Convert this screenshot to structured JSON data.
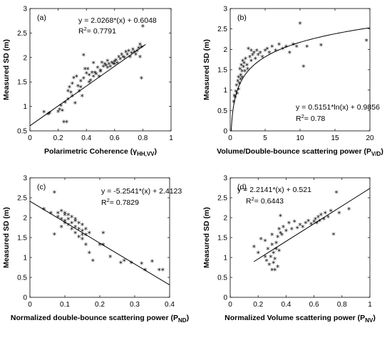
{
  "chart_data": [
    {
      "type": "scatter",
      "panel_label": "(a)",
      "equation": "y = 2.0268*(x) + 0.6048",
      "r2_prefix": "R",
      "r2_sup": "2",
      "r2_value": "= 0.7791",
      "xlabel": "Polarimetric Coherence (γ",
      "xlabel_sub": "HH,VV",
      "xlabel_end": ")",
      "ylabel": "Measured SD (m)",
      "xlim": [
        0,
        1
      ],
      "ylim": [
        0.5,
        3
      ],
      "xticks": [
        0,
        0.2,
        0.4,
        0.6,
        0.8,
        1
      ],
      "xtick_labels": [
        "0",
        "0.2",
        "0.4",
        "0.6",
        "0.8",
        "1"
      ],
      "yticks": [
        0.5,
        1,
        1.5,
        2,
        2.5,
        3
      ],
      "ytick_labels": [
        "0.5",
        "1",
        "1.5",
        "2",
        "2.5",
        "3"
      ],
      "fit": {
        "kind": "linear",
        "a": 2.0268,
        "b": 0.6048,
        "x_from": 0,
        "x_to": 0.82
      },
      "marker": "*",
      "points": [
        [
          0.1,
          0.87
        ],
        [
          0.13,
          0.83
        ],
        [
          0.14,
          0.85
        ],
        [
          0.2,
          0.88
        ],
        [
          0.22,
          1.0
        ],
        [
          0.23,
          0.9
        ],
        [
          0.24,
          0.67
        ],
        [
          0.26,
          0.67
        ],
        [
          0.25,
          1.07
        ],
        [
          0.27,
          1.13
        ],
        [
          0.27,
          1.3
        ],
        [
          0.28,
          1.38
        ],
        [
          0.3,
          1.45
        ],
        [
          0.31,
          1.57
        ],
        [
          0.33,
          1.6
        ],
        [
          0.3,
          1.2
        ],
        [
          0.32,
          1.05
        ],
        [
          0.35,
          1.3
        ],
        [
          0.36,
          1.38
        ],
        [
          0.37,
          1.2
        ],
        [
          0.38,
          2.03
        ],
        [
          0.38,
          1.56
        ],
        [
          0.4,
          1.66
        ],
        [
          0.41,
          1.75
        ],
        [
          0.42,
          1.48
        ],
        [
          0.43,
          1.52
        ],
        [
          0.44,
          1.68
        ],
        [
          0.45,
          1.87
        ],
        [
          0.46,
          1.68
        ],
        [
          0.47,
          1.65
        ],
        [
          0.48,
          1.78
        ],
        [
          0.49,
          1.6
        ],
        [
          0.5,
          1.72
        ],
        [
          0.51,
          1.88
        ],
        [
          0.52,
          1.8
        ],
        [
          0.53,
          1.85
        ],
        [
          0.54,
          1.82
        ],
        [
          0.55,
          1.92
        ],
        [
          0.56,
          1.85
        ],
        [
          0.57,
          1.8
        ],
        [
          0.58,
          1.88
        ],
        [
          0.59,
          1.86
        ],
        [
          0.6,
          1.9
        ],
        [
          0.61,
          1.93
        ],
        [
          0.62,
          1.87
        ],
        [
          0.63,
          2.0
        ],
        [
          0.64,
          1.95
        ],
        [
          0.65,
          2.05
        ],
        [
          0.66,
          2.0
        ],
        [
          0.67,
          1.98
        ],
        [
          0.68,
          2.1
        ],
        [
          0.69,
          2.05
        ],
        [
          0.7,
          2.12
        ],
        [
          0.71,
          2.0
        ],
        [
          0.72,
          2.08
        ],
        [
          0.73,
          2.15
        ],
        [
          0.74,
          2.1
        ],
        [
          0.75,
          2.05
        ],
        [
          0.76,
          2.12
        ],
        [
          0.77,
          2.18
        ],
        [
          0.78,
          2.0
        ],
        [
          0.79,
          2.2
        ],
        [
          0.8,
          2.62
        ],
        [
          0.79,
          1.56
        ],
        [
          0.78,
          2.25
        ],
        [
          0.6,
          1.85
        ],
        [
          0.55,
          1.78
        ],
        [
          0.5,
          1.7
        ],
        [
          0.45,
          1.6
        ],
        [
          0.42,
          1.63
        ],
        [
          0.39,
          1.75
        ],
        [
          0.36,
          1.5
        ],
        [
          0.34,
          1.4
        ],
        [
          0.29,
          1.27
        ],
        [
          0.21,
          0.92
        ]
      ]
    },
    {
      "type": "scatter",
      "panel_label": "(b)",
      "equation": "y = 0.5151*ln(x) + 0.9856",
      "r2_prefix": "R",
      "r2_sup": "2",
      "r2_value": "= 0.78",
      "xlabel": "Volume/Double-bounce scattering power (P",
      "xlabel_sub": "V/D",
      "xlabel_end": ")",
      "ylabel": "Measured SD (m)",
      "xlim": [
        0,
        20
      ],
      "ylim": [
        0,
        3
      ],
      "xticks": [
        0,
        5,
        10,
        15,
        20
      ],
      "xtick_labels": [
        "0",
        "5",
        "10",
        "15",
        "20"
      ],
      "yticks": [
        0,
        0.5,
        1,
        1.5,
        2,
        2.5,
        3
      ],
      "ytick_labels": [
        "0",
        "0.5",
        "1",
        "1.5",
        "2",
        "2.5",
        "3"
      ],
      "fit": {
        "kind": "log",
        "a": 0.5151,
        "b": 0.9856,
        "x_from": 0.15,
        "x_to": 20
      },
      "marker": "*",
      "points": [
        [
          0.5,
          0.7
        ],
        [
          0.6,
          0.85
        ],
        [
          0.7,
          0.8
        ],
        [
          0.8,
          0.95
        ],
        [
          0.9,
          1.1
        ],
        [
          1.0,
          0.9
        ],
        [
          1.1,
          1.2
        ],
        [
          1.2,
          1.3
        ],
        [
          1.3,
          1.15
        ],
        [
          1.4,
          1.5
        ],
        [
          1.5,
          1.35
        ],
        [
          1.6,
          1.6
        ],
        [
          1.7,
          1.45
        ],
        [
          1.8,
          1.7
        ],
        [
          1.9,
          1.55
        ],
        [
          2.0,
          1.65
        ],
        [
          2.2,
          1.75
        ],
        [
          2.4,
          1.6
        ],
        [
          2.6,
          2.0
        ],
        [
          2.8,
          1.8
        ],
        [
          3.0,
          1.7
        ],
        [
          3.2,
          1.85
        ],
        [
          3.4,
          1.9
        ],
        [
          3.6,
          1.75
        ],
        [
          3.8,
          1.95
        ],
        [
          4.0,
          1.85
        ],
        [
          4.3,
          1.9
        ],
        [
          4.6,
          1.8
        ],
        [
          5.0,
          1.95
        ],
        [
          5.3,
          2.0
        ],
        [
          5.6,
          1.9
        ],
        [
          6.0,
          2.05
        ],
        [
          6.5,
          1.95
        ],
        [
          7.0,
          2.1
        ],
        [
          7.5,
          2.0
        ],
        [
          8.0,
          2.05
        ],
        [
          8.5,
          1.9
        ],
        [
          9.0,
          2.1
        ],
        [
          9.5,
          2.05
        ],
        [
          10.0,
          2.62
        ],
        [
          10.5,
          1.56
        ],
        [
          11.0,
          2.05
        ],
        [
          13.0,
          2.08
        ],
        [
          19.5,
          2.2
        ],
        [
          1.2,
          1.0
        ],
        [
          1.5,
          1.25
        ],
        [
          2.5,
          1.5
        ],
        [
          3.0,
          1.95
        ],
        [
          2.1,
          1.45
        ],
        [
          1.7,
          1.3
        ]
      ]
    },
    {
      "type": "scatter",
      "panel_label": "(c)",
      "equation": "y = -5.2541*(x) + 2.4123",
      "r2_prefix": "R",
      "r2_sup": "2",
      "r2_value": "= 0.7829",
      "xlabel": "Normalized double-bounce scattering power (P",
      "xlabel_sub": "ND",
      "xlabel_end": ")",
      "ylabel": "Measured SD (m)",
      "xlim": [
        0,
        0.4
      ],
      "ylim": [
        0,
        3
      ],
      "xticks": [
        0,
        0.1,
        0.2,
        0.3,
        0.4
      ],
      "xtick_labels": [
        "0",
        "0.1",
        "0.2",
        "0.3",
        "0.4"
      ],
      "yticks": [
        0,
        0.5,
        1,
        1.5,
        2,
        2.5,
        3
      ],
      "ytick_labels": [
        "0",
        "0.5",
        "1",
        "1.5",
        "2",
        "2.5",
        "3"
      ],
      "fit": {
        "kind": "linear",
        "a": -5.2541,
        "b": 2.4123,
        "x_from": 0,
        "x_to": 0.4
      },
      "marker": "*",
      "points": [
        [
          0.04,
          2.2
        ],
        [
          0.06,
          2.1
        ],
        [
          0.07,
          2.62
        ],
        [
          0.07,
          1.56
        ],
        [
          0.08,
          2.1
        ],
        [
          0.08,
          2.0
        ],
        [
          0.09,
          2.15
        ],
        [
          0.09,
          1.95
        ],
        [
          0.1,
          2.05
        ],
        [
          0.1,
          1.85
        ],
        [
          0.1,
          2.1
        ],
        [
          0.11,
          1.95
        ],
        [
          0.11,
          1.8
        ],
        [
          0.12,
          2.0
        ],
        [
          0.12,
          1.85
        ],
        [
          0.12,
          1.7
        ],
        [
          0.13,
          1.9
        ],
        [
          0.13,
          1.75
        ],
        [
          0.13,
          1.6
        ],
        [
          0.14,
          1.85
        ],
        [
          0.14,
          1.7
        ],
        [
          0.14,
          1.5
        ],
        [
          0.15,
          1.8
        ],
        [
          0.15,
          1.65
        ],
        [
          0.15,
          1.45
        ],
        [
          0.16,
          1.7
        ],
        [
          0.16,
          1.55
        ],
        [
          0.16,
          1.3
        ],
        [
          0.17,
          1.6
        ],
        [
          0.17,
          1.1
        ],
        [
          0.18,
          0.9
        ],
        [
          0.2,
          1.3
        ],
        [
          0.21,
          1.3
        ],
        [
          0.21,
          1.6
        ],
        [
          0.23,
          1.0
        ],
        [
          0.26,
          0.85
        ],
        [
          0.27,
          0.9
        ],
        [
          0.29,
          0.85
        ],
        [
          0.32,
          0.83
        ],
        [
          0.33,
          0.67
        ],
        [
          0.35,
          0.88
        ],
        [
          0.37,
          0.67
        ],
        [
          0.38,
          0.67
        ],
        [
          0.09,
          1.75
        ],
        [
          0.11,
          2.05
        ],
        [
          0.13,
          1.95
        ],
        [
          0.15,
          1.55
        ],
        [
          0.1,
          1.9
        ]
      ]
    },
    {
      "type": "scatter",
      "panel_label": "(d)",
      "equation": "y = 2.2141*(x) + 0.521",
      "r2_prefix": "R",
      "r2_sup": "2",
      "r2_value": "= 0.6443",
      "xlabel": "Normalized Volume scattering power (P",
      "xlabel_sub": "NV",
      "xlabel_end": ")",
      "ylabel": "Measured SD (m)",
      "xlim": [
        0,
        1
      ],
      "ylim": [
        0,
        3
      ],
      "xticks": [
        0,
        0.2,
        0.4,
        0.6,
        0.8,
        1
      ],
      "xtick_labels": [
        "0",
        "0.2",
        "0.4",
        "0.6",
        "0.8",
        "1"
      ],
      "yticks": [
        0,
        0.5,
        1,
        1.5,
        2,
        2.5,
        3
      ],
      "ytick_labels": [
        "0",
        "0.5",
        "1",
        "1.5",
        "2",
        "2.5",
        "3"
      ],
      "fit": {
        "kind": "linear",
        "a": 2.2141,
        "b": 0.521,
        "x_from": 0.17,
        "x_to": 1
      },
      "marker": "*",
      "points": [
        [
          0.17,
          1.25
        ],
        [
          0.2,
          1.1
        ],
        [
          0.22,
          1.45
        ],
        [
          0.25,
          1.4
        ],
        [
          0.26,
          0.9
        ],
        [
          0.27,
          1.2
        ],
        [
          0.28,
          0.8
        ],
        [
          0.29,
          1.0
        ],
        [
          0.3,
          0.67
        ],
        [
          0.3,
          1.3
        ],
        [
          0.31,
          0.85
        ],
        [
          0.31,
          1.1
        ],
        [
          0.32,
          0.67
        ],
        [
          0.32,
          0.95
        ],
        [
          0.33,
          1.2
        ],
        [
          0.33,
          1.35
        ],
        [
          0.34,
          0.75
        ],
        [
          0.34,
          1.5
        ],
        [
          0.35,
          1.7
        ],
        [
          0.36,
          2.03
        ],
        [
          0.36,
          1.6
        ],
        [
          0.37,
          1.55
        ],
        [
          0.38,
          1.75
        ],
        [
          0.4,
          1.65
        ],
        [
          0.42,
          1.85
        ],
        [
          0.44,
          1.7
        ],
        [
          0.46,
          1.88
        ],
        [
          0.48,
          1.72
        ],
        [
          0.5,
          1.8
        ],
        [
          0.52,
          1.75
        ],
        [
          0.54,
          1.85
        ],
        [
          0.56,
          1.9
        ],
        [
          0.58,
          1.82
        ],
        [
          0.6,
          1.88
        ],
        [
          0.61,
          1.95
        ],
        [
          0.62,
          1.85
        ],
        [
          0.63,
          2.0
        ],
        [
          0.64,
          1.9
        ],
        [
          0.65,
          2.05
        ],
        [
          0.67,
          1.95
        ],
        [
          0.68,
          2.1
        ],
        [
          0.7,
          2.0
        ],
        [
          0.72,
          2.15
        ],
        [
          0.74,
          1.56
        ],
        [
          0.76,
          2.62
        ],
        [
          0.78,
          2.1
        ],
        [
          0.85,
          2.2
        ],
        [
          0.35,
          1.15
        ],
        [
          0.3,
          1.55
        ],
        [
          0.25,
          1.0
        ]
      ]
    }
  ]
}
